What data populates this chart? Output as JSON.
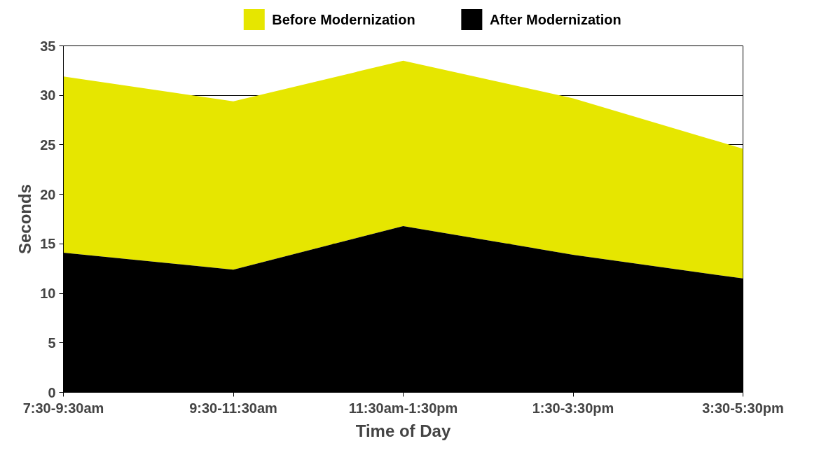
{
  "chart_data": {
    "type": "area",
    "xlabel": "Time of Day",
    "ylabel": "Seconds",
    "categories": [
      "7:30-9:30am",
      "9:30-11:30am",
      "11:30am-1:30pm",
      "1:30-3:30pm",
      "3:30-5:30pm"
    ],
    "series": [
      {
        "name": "Before Modernization",
        "color": "#e6e600",
        "values": [
          31.9,
          29.4,
          33.5,
          29.7,
          24.6
        ]
      },
      {
        "name": "After Modernization",
        "color": "#000000",
        "values": [
          14.1,
          12.4,
          16.8,
          13.9,
          11.5
        ]
      }
    ],
    "ylim": [
      0,
      35
    ],
    "yticks": [
      0,
      5,
      10,
      15,
      20,
      25,
      30,
      35
    ],
    "grid": "y",
    "legend": "top"
  }
}
